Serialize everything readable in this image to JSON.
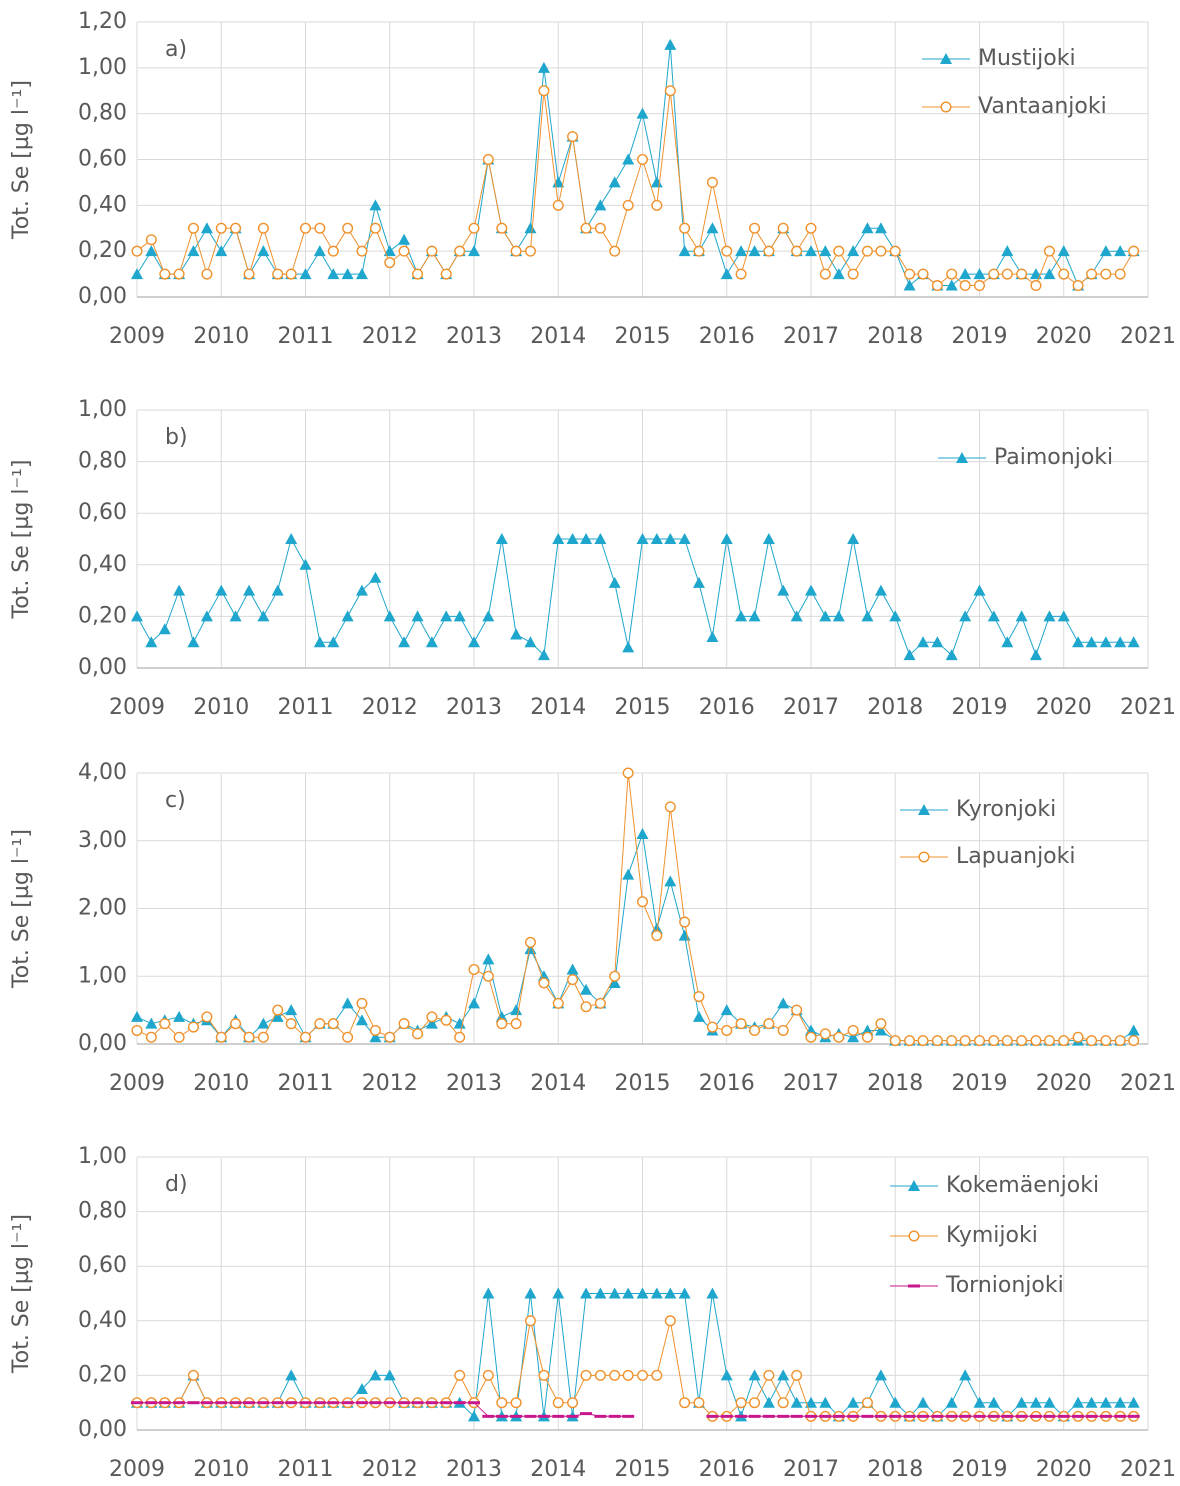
{
  "chart_data": [
    {
      "type": "line",
      "label": "a)",
      "y_label": "Tot. Se [µg l⁻¹]",
      "grid": true,
      "legend": "upper right",
      "xlim": [
        2009,
        2021
      ],
      "xticks": [
        2009,
        2010,
        2011,
        2012,
        2013,
        2014,
        2015,
        2016,
        2017,
        2018,
        2019,
        2020,
        2021
      ],
      "ylim": [
        0,
        1.2
      ],
      "yticks": [
        {
          "value": 0,
          "label": "0,00"
        },
        {
          "value": 0.2,
          "label": "0,20"
        },
        {
          "value": 0.4,
          "label": "0,40"
        },
        {
          "value": 0.6,
          "label": "0,60"
        },
        {
          "value": 0.8,
          "label": "0,80"
        },
        {
          "value": 1.0,
          "label": "1,00"
        },
        {
          "value": 1.2,
          "label": "1,20"
        }
      ],
      "x": [
        2009,
        2009.17,
        2009.33,
        2009.5,
        2009.67,
        2009.83,
        2010,
        2010.17,
        2010.33,
        2010.5,
        2010.67,
        2010.83,
        2011,
        2011.17,
        2011.33,
        2011.5,
        2011.67,
        2011.83,
        2012,
        2012.17,
        2012.33,
        2012.5,
        2012.67,
        2012.83,
        2013,
        2013.17,
        2013.33,
        2013.5,
        2013.67,
        2013.83,
        2014,
        2014.17,
        2014.33,
        2014.5,
        2014.67,
        2014.83,
        2015,
        2015.17,
        2015.33,
        2015.5,
        2015.67,
        2015.83,
        2016,
        2016.17,
        2016.33,
        2016.5,
        2016.67,
        2016.83,
        2017,
        2017.17,
        2017.33,
        2017.5,
        2017.67,
        2017.83,
        2018,
        2018.17,
        2018.33,
        2018.5,
        2018.67,
        2018.83,
        2019,
        2019.17,
        2019.33,
        2019.5,
        2019.67,
        2019.83,
        2020,
        2020.17,
        2020.33,
        2020.5,
        2020.67,
        2020.83
      ],
      "series": [
        {
          "name": "Mustijoki",
          "color": "#1fa6cc",
          "marker": "triangle",
          "values": [
            0.1,
            0.2,
            0.1,
            0.1,
            0.2,
            0.3,
            0.2,
            0.3,
            0.1,
            0.2,
            0.1,
            0.1,
            0.1,
            0.2,
            0.1,
            0.1,
            0.1,
            0.4,
            0.2,
            0.25,
            0.1,
            0.2,
            0.1,
            0.2,
            0.2,
            0.6,
            0.3,
            0.2,
            0.3,
            1.0,
            0.5,
            0.7,
            0.3,
            0.4,
            0.5,
            0.6,
            0.8,
            0.5,
            1.1,
            0.2,
            0.2,
            0.3,
            0.1,
            0.2,
            0.2,
            0.2,
            0.3,
            0.2,
            0.2,
            0.2,
            0.1,
            0.2,
            0.3,
            0.3,
            0.2,
            0.05,
            0.1,
            0.05,
            0.05,
            0.1,
            0.1,
            0.1,
            0.2,
            0.1,
            0.1,
            0.1,
            0.2,
            0.05,
            0.1,
            0.2,
            0.2,
            0.2
          ]
        },
        {
          "name": "Vantaanjoki",
          "color": "#f0912c",
          "marker": "circle",
          "values": [
            0.2,
            0.25,
            0.1,
            0.1,
            0.3,
            0.1,
            0.3,
            0.3,
            0.1,
            0.3,
            0.1,
            0.1,
            0.3,
            0.3,
            0.2,
            0.3,
            0.2,
            0.3,
            0.15,
            0.2,
            0.1,
            0.2,
            0.1,
            0.2,
            0.3,
            0.6,
            0.3,
            0.2,
            0.2,
            0.9,
            0.4,
            0.7,
            0.3,
            0.3,
            0.2,
            0.4,
            0.6,
            0.4,
            0.9,
            0.3,
            0.2,
            0.5,
            0.2,
            0.1,
            0.3,
            0.2,
            0.3,
            0.2,
            0.3,
            0.1,
            0.2,
            0.1,
            0.2,
            0.2,
            0.2,
            0.1,
            0.1,
            0.05,
            0.1,
            0.05,
            0.05,
            0.1,
            0.1,
            0.1,
            0.05,
            0.2,
            0.1,
            0.05,
            0.1,
            0.1,
            0.1,
            0.2
          ]
        }
      ]
    },
    {
      "type": "line",
      "label": "b)",
      "y_label": "Tot. Se [µg l⁻¹]",
      "grid": true,
      "legend": "upper right",
      "xlim": [
        2009,
        2021
      ],
      "xticks": [
        2009,
        2010,
        2011,
        2012,
        2013,
        2014,
        2015,
        2016,
        2017,
        2018,
        2019,
        2020,
        2021
      ],
      "ylim": [
        0,
        1.0
      ],
      "yticks": [
        {
          "value": 0,
          "label": "0,00"
        },
        {
          "value": 0.2,
          "label": "0,20"
        },
        {
          "value": 0.4,
          "label": "0,40"
        },
        {
          "value": 0.6,
          "label": "0,60"
        },
        {
          "value": 0.8,
          "label": "0,80"
        },
        {
          "value": 1.0,
          "label": "1,00"
        }
      ],
      "x": [
        2009,
        2009.17,
        2009.33,
        2009.5,
        2009.67,
        2009.83,
        2010,
        2010.17,
        2010.33,
        2010.5,
        2010.67,
        2010.83,
        2011,
        2011.17,
        2011.33,
        2011.5,
        2011.67,
        2011.83,
        2012,
        2012.17,
        2012.33,
        2012.5,
        2012.67,
        2012.83,
        2013,
        2013.17,
        2013.33,
        2013.5,
        2013.67,
        2013.83,
        2014,
        2014.17,
        2014.33,
        2014.5,
        2014.67,
        2014.83,
        2015,
        2015.17,
        2015.33,
        2015.5,
        2015.67,
        2015.83,
        2016,
        2016.17,
        2016.33,
        2016.5,
        2016.67,
        2016.83,
        2017,
        2017.17,
        2017.33,
        2017.5,
        2017.67,
        2017.83,
        2018,
        2018.17,
        2018.33,
        2018.5,
        2018.67,
        2018.83,
        2019,
        2019.17,
        2019.33,
        2019.5,
        2019.67,
        2019.83,
        2020,
        2020.17,
        2020.33,
        2020.5,
        2020.67,
        2020.83
      ],
      "series": [
        {
          "name": "Paimonjoki",
          "color": "#1fa6cc",
          "marker": "triangle",
          "values": [
            0.2,
            0.1,
            0.15,
            0.3,
            0.1,
            0.2,
            0.3,
            0.2,
            0.3,
            0.2,
            0.3,
            0.5,
            0.4,
            0.1,
            0.1,
            0.2,
            0.3,
            0.35,
            0.2,
            0.1,
            0.2,
            0.1,
            0.2,
            0.2,
            0.1,
            0.2,
            0.5,
            0.13,
            0.1,
            0.05,
            0.5,
            0.5,
            0.5,
            0.5,
            0.33,
            0.08,
            0.5,
            0.5,
            0.5,
            0.5,
            0.33,
            0.12,
            0.5,
            0.2,
            0.2,
            0.5,
            0.3,
            0.2,
            0.3,
            0.2,
            0.2,
            0.5,
            0.2,
            0.3,
            0.2,
            0.05,
            0.1,
            0.1,
            0.05,
            0.2,
            0.3,
            0.2,
            0.1,
            0.2,
            0.05,
            0.2,
            0.2,
            0.1,
            0.1,
            0.1,
            0.1,
            0.1
          ]
        }
      ]
    },
    {
      "type": "line",
      "label": "c)",
      "y_label": "Tot. Se [µg l⁻¹]",
      "grid": true,
      "legend": "upper right",
      "xlim": [
        2009,
        2021
      ],
      "xticks": [
        2009,
        2010,
        2011,
        2012,
        2013,
        2014,
        2015,
        2016,
        2017,
        2018,
        2019,
        2020,
        2021
      ],
      "ylim": [
        0,
        4.0
      ],
      "yticks": [
        {
          "value": 0,
          "label": "0,00"
        },
        {
          "value": 1,
          "label": "1,00"
        },
        {
          "value": 2,
          "label": "2,00"
        },
        {
          "value": 3,
          "label": "3,00"
        },
        {
          "value": 4,
          "label": "4,00"
        }
      ],
      "x": [
        2009,
        2009.17,
        2009.33,
        2009.5,
        2009.67,
        2009.83,
        2010,
        2010.17,
        2010.33,
        2010.5,
        2010.67,
        2010.83,
        2011,
        2011.17,
        2011.33,
        2011.5,
        2011.67,
        2011.83,
        2012,
        2012.17,
        2012.33,
        2012.5,
        2012.67,
        2012.83,
        2013,
        2013.17,
        2013.33,
        2013.5,
        2013.67,
        2013.83,
        2014,
        2014.17,
        2014.33,
        2014.5,
        2014.67,
        2014.83,
        2015,
        2015.17,
        2015.33,
        2015.5,
        2015.67,
        2015.83,
        2016,
        2016.17,
        2016.33,
        2016.5,
        2016.67,
        2016.83,
        2017,
        2017.17,
        2017.33,
        2017.5,
        2017.67,
        2017.83,
        2018,
        2018.17,
        2018.33,
        2018.5,
        2018.67,
        2018.83,
        2019,
        2019.17,
        2019.33,
        2019.5,
        2019.67,
        2019.83,
        2020,
        2020.17,
        2020.33,
        2020.5,
        2020.67,
        2020.83
      ],
      "series": [
        {
          "name": "Kyronjoki",
          "color": "#1fa6cc",
          "marker": "triangle",
          "values": [
            0.4,
            0.3,
            0.35,
            0.4,
            0.3,
            0.35,
            0.1,
            0.35,
            0.1,
            0.3,
            0.4,
            0.5,
            0.1,
            0.3,
            0.3,
            0.6,
            0.35,
            0.1,
            0.1,
            0.3,
            0.2,
            0.3,
            0.4,
            0.3,
            0.6,
            1.25,
            0.4,
            0.5,
            1.4,
            1.0,
            0.6,
            1.1,
            0.8,
            0.6,
            0.9,
            2.5,
            3.1,
            1.7,
            2.4,
            1.6,
            0.4,
            0.2,
            0.5,
            0.3,
            0.25,
            0.3,
            0.6,
            0.5,
            0.2,
            0.1,
            0.15,
            0.1,
            0.2,
            0.2,
            0.05,
            0.05,
            0.05,
            0.05,
            0.05,
            0.05,
            0.05,
            0.05,
            0.05,
            0.05,
            0.05,
            0.05,
            0.05,
            0.05,
            0.05,
            0.05,
            0.05,
            0.2
          ]
        },
        {
          "name": "Lapuanjoki",
          "color": "#f0912c",
          "marker": "circle",
          "values": [
            0.2,
            0.1,
            0.3,
            0.1,
            0.25,
            0.4,
            0.1,
            0.3,
            0.1,
            0.1,
            0.5,
            0.3,
            0.1,
            0.3,
            0.3,
            0.1,
            0.6,
            0.2,
            0.1,
            0.3,
            0.15,
            0.4,
            0.35,
            0.1,
            1.1,
            1.0,
            0.3,
            0.3,
            1.5,
            0.9,
            0.6,
            0.95,
            0.55,
            0.6,
            1.0,
            4.0,
            2.1,
            1.6,
            3.5,
            1.8,
            0.7,
            0.25,
            0.2,
            0.3,
            0.2,
            0.3,
            0.2,
            0.5,
            0.1,
            0.15,
            0.1,
            0.2,
            0.1,
            0.3,
            0.05,
            0.05,
            0.05,
            0.05,
            0.05,
            0.05,
            0.05,
            0.05,
            0.05,
            0.05,
            0.05,
            0.05,
            0.05,
            0.1,
            0.05,
            0.05,
            0.05,
            0.05
          ]
        }
      ]
    },
    {
      "type": "line",
      "label": "d)",
      "y_label": "Tot. Se [µg l⁻¹]",
      "grid": true,
      "legend": "upper right",
      "xlim": [
        2009,
        2021
      ],
      "xticks": [
        2009,
        2010,
        2011,
        2012,
        2013,
        2014,
        2015,
        2016,
        2017,
        2018,
        2019,
        2020,
        2021
      ],
      "ylim": [
        0,
        1.0
      ],
      "yticks": [
        {
          "value": 0,
          "label": "0,00"
        },
        {
          "value": 0.2,
          "label": "0,20"
        },
        {
          "value": 0.4,
          "label": "0,40"
        },
        {
          "value": 0.6,
          "label": "0,60"
        },
        {
          "value": 0.8,
          "label": "0,80"
        },
        {
          "value": 1.0,
          "label": "1,00"
        }
      ],
      "x": [
        2009,
        2009.17,
        2009.33,
        2009.5,
        2009.67,
        2009.83,
        2010,
        2010.17,
        2010.33,
        2010.5,
        2010.67,
        2010.83,
        2011,
        2011.17,
        2011.33,
        2011.5,
        2011.67,
        2011.83,
        2012,
        2012.17,
        2012.33,
        2012.5,
        2012.67,
        2012.83,
        2013,
        2013.17,
        2013.33,
        2013.5,
        2013.67,
        2013.83,
        2014,
        2014.17,
        2014.33,
        2014.5,
        2014.67,
        2014.83,
        2015,
        2015.17,
        2015.33,
        2015.5,
        2015.67,
        2015.83,
        2016,
        2016.17,
        2016.33,
        2016.5,
        2016.67,
        2016.83,
        2017,
        2017.17,
        2017.33,
        2017.5,
        2017.67,
        2017.83,
        2018,
        2018.17,
        2018.33,
        2018.5,
        2018.67,
        2018.83,
        2019,
        2019.17,
        2019.33,
        2019.5,
        2019.67,
        2019.83,
        2020,
        2020.17,
        2020.33,
        2020.5,
        2020.67,
        2020.83
      ],
      "series": [
        {
          "name": "Kokemäenjoki",
          "color": "#1fa6cc",
          "marker": "triangle",
          "values": [
            0.1,
            0.1,
            0.1,
            0.1,
            0.2,
            0.1,
            0.1,
            0.1,
            0.1,
            0.1,
            0.1,
            0.2,
            0.1,
            0.1,
            0.1,
            0.1,
            0.15,
            0.2,
            0.2,
            0.1,
            0.1,
            0.1,
            0.1,
            0.1,
            0.05,
            0.5,
            0.05,
            0.05,
            0.5,
            0.05,
            0.5,
            0.05,
            0.5,
            0.5,
            0.5,
            0.5,
            0.5,
            0.5,
            0.5,
            0.5,
            0.1,
            0.5,
            0.2,
            0.05,
            0.2,
            0.1,
            0.2,
            0.1,
            0.1,
            0.1,
            0.05,
            0.1,
            0.1,
            0.2,
            0.1,
            0.05,
            0.1,
            0.05,
            0.1,
            0.2,
            0.1,
            0.1,
            0.05,
            0.1,
            0.1,
            0.1,
            0.05,
            0.1,
            0.1,
            0.1,
            0.1,
            0.1
          ]
        },
        {
          "name": "Kymijoki",
          "color": "#f0912c",
          "marker": "circle",
          "values": [
            0.1,
            0.1,
            0.1,
            0.1,
            0.2,
            0.1,
            0.1,
            0.1,
            0.1,
            0.1,
            0.1,
            0.1,
            0.1,
            0.1,
            0.1,
            0.1,
            0.1,
            0.1,
            0.1,
            0.1,
            0.1,
            0.1,
            0.1,
            0.2,
            0.1,
            0.2,
            0.1,
            0.1,
            0.4,
            0.2,
            0.1,
            0.1,
            0.2,
            0.2,
            0.2,
            0.2,
            0.2,
            0.2,
            0.4,
            0.1,
            0.1,
            0.05,
            0.05,
            0.1,
            0.1,
            0.2,
            0.1,
            0.2,
            0.05,
            0.05,
            0.05,
            0.05,
            0.1,
            0.05,
            0.05,
            0.05,
            0.05,
            0.05,
            0.05,
            0.05,
            0.05,
            0.05,
            0.05,
            0.05,
            0.05,
            0.05,
            0.05,
            0.05,
            0.05,
            0.05,
            0.05,
            0.05
          ]
        },
        {
          "name": "Tornionjoki",
          "color": "#c8168c",
          "marker": "dash",
          "values": [
            0.1,
            0.1,
            0.1,
            0.1,
            0.1,
            0.1,
            0.1,
            0.1,
            0.1,
            0.1,
            0.1,
            0.1,
            0.1,
            0.1,
            0.1,
            0.1,
            0.1,
            0.1,
            0.1,
            0.1,
            0.1,
            0.1,
            0.1,
            0.1,
            0.1,
            0.05,
            0.05,
            0.05,
            0.05,
            0.05,
            0.05,
            0.05,
            0.06,
            0.05,
            0.05,
            0.05,
            null,
            null,
            null,
            null,
            null,
            0.05,
            0.05,
            0.05,
            0.05,
            0.05,
            0.05,
            0.05,
            0.05,
            0.05,
            0.05,
            0.05,
            0.05,
            0.05,
            0.05,
            0.05,
            0.05,
            0.05,
            0.05,
            0.05,
            0.05,
            0.05,
            0.05,
            0.05,
            0.05,
            0.05,
            0.05,
            0.05,
            0.05,
            0.05,
            0.05,
            0.05
          ]
        }
      ]
    }
  ]
}
